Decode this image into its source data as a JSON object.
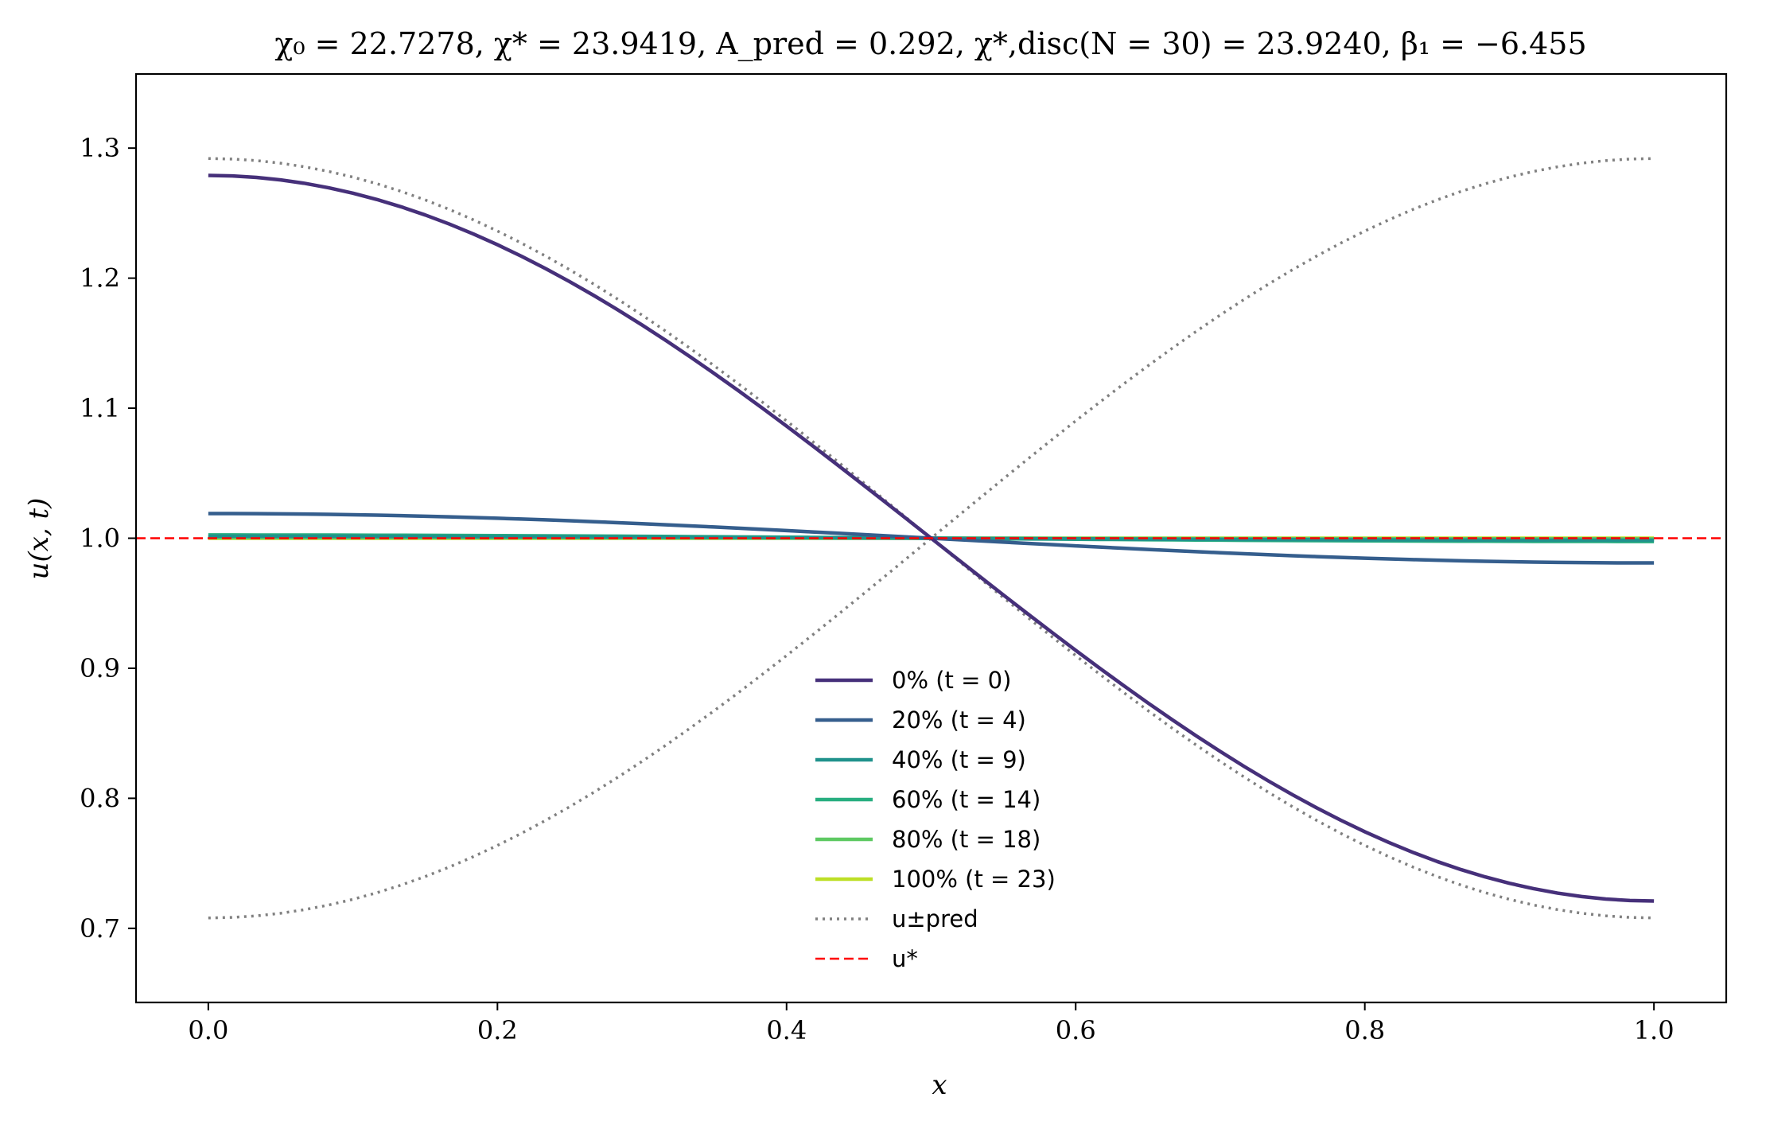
{
  "chart_data": {
    "type": "line",
    "title": "χ₀ = 22.7278, χ* = 23.9419, A_pred = 0.292, χ*,disc(N = 30) = 23.9240, β₁ = −6.455",
    "xlabel": "x",
    "ylabel": "u(x, t)",
    "xlim": [
      -0.05,
      1.05
    ],
    "ylim": [
      0.643,
      1.357
    ],
    "xticks": [
      0.0,
      0.2,
      0.4,
      0.6,
      0.8,
      1.0
    ],
    "xtick_labels": [
      "0.0",
      "0.2",
      "0.4",
      "0.6",
      "0.8",
      "1.0"
    ],
    "yticks": [
      0.7,
      0.8,
      0.9,
      1.0,
      1.1,
      1.2,
      1.3
    ],
    "ytick_labels": [
      "0.7",
      "0.8",
      "0.9",
      "1.0",
      "1.1",
      "1.2",
      "1.3"
    ],
    "grid": false,
    "legend_position": "lower-center",
    "x_profile": "cos(pi x)",
    "series": [
      {
        "name": "0% (t = 0)",
        "amplitude": 0.279,
        "color": "#46307a",
        "style": "solid",
        "width": 4.5
      },
      {
        "name": "20% (t = 4)",
        "amplitude": 0.019,
        "color": "#355e8d",
        "style": "solid",
        "width": 4.5
      },
      {
        "name": "40% (t = 9)",
        "amplitude": 0.0015,
        "color": "#20928c",
        "style": "solid",
        "width": 4.5
      },
      {
        "name": "60% (t = 14)",
        "amplitude": 0.0025,
        "color": "#28ae80",
        "style": "solid",
        "width": 4.5
      },
      {
        "name": "80% (t = 18)",
        "amplitude": 0.0005,
        "color": "#5ec962",
        "style": "solid",
        "width": 4.5
      },
      {
        "name": "100% (t = 23)",
        "amplitude": 0.0,
        "color": "#bddf26",
        "style": "solid",
        "width": 4.5
      },
      {
        "name": "u±pred",
        "amplitudes": [
          0.292,
          -0.292
        ],
        "color": "#808080",
        "style": "dotted",
        "width": 3.5
      },
      {
        "name": "u*",
        "value": 1.0,
        "color": "#ff0000",
        "style": "dashed",
        "width": 2.5
      }
    ]
  }
}
